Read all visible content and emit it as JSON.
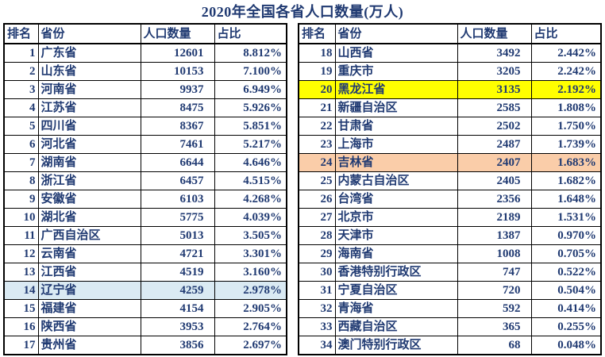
{
  "page": {
    "title": "2020年全国各省人口数量(万人)"
  },
  "colors": {
    "text": "#203a72",
    "border": "#000000",
    "background": "#ffffff",
    "highlight_light_blue": "#daeaf3",
    "highlight_yellow": "#ffff00",
    "highlight_orange": "#facda9"
  },
  "chart_data": {
    "type": "table",
    "title": "2020年全国各省人口数量(万人)",
    "unit_label": "万人",
    "columns": [
      "排名",
      "省份",
      "人口数量",
      "占比"
    ],
    "layout": {
      "panels": 2,
      "left_panel_ranks": "1-17",
      "right_panel_ranks": "18-34",
      "grid": true
    },
    "highlighted_rows": [
      {
        "rank": 14,
        "province": "辽宁省",
        "color_name": "light_blue"
      },
      {
        "rank": 20,
        "province": "黑龙江省",
        "color_name": "yellow"
      },
      {
        "rank": 24,
        "province": "吉林省",
        "color_name": "orange"
      }
    ],
    "rows": [
      {
        "rank": 1,
        "province": "广东省",
        "population": 12601,
        "percent": "8.812%",
        "highlight": ""
      },
      {
        "rank": 2,
        "province": "山东省",
        "population": 10153,
        "percent": "7.100%",
        "highlight": ""
      },
      {
        "rank": 3,
        "province": "河南省",
        "population": 9937,
        "percent": "6.949%",
        "highlight": ""
      },
      {
        "rank": 4,
        "province": "江苏省",
        "population": 8475,
        "percent": "5.926%",
        "highlight": ""
      },
      {
        "rank": 5,
        "province": "四川省",
        "population": 8367,
        "percent": "5.851%",
        "highlight": ""
      },
      {
        "rank": 6,
        "province": "河北省",
        "population": 7461,
        "percent": "5.217%",
        "highlight": ""
      },
      {
        "rank": 7,
        "province": "湖南省",
        "population": 6644,
        "percent": "4.646%",
        "highlight": ""
      },
      {
        "rank": 8,
        "province": "浙江省",
        "population": 6457,
        "percent": "4.515%",
        "highlight": ""
      },
      {
        "rank": 9,
        "province": "安徽省",
        "population": 6103,
        "percent": "4.268%",
        "highlight": ""
      },
      {
        "rank": 10,
        "province": "湖北省",
        "population": 5775,
        "percent": "4.039%",
        "highlight": ""
      },
      {
        "rank": 11,
        "province": "广西自治区",
        "population": 5013,
        "percent": "3.505%",
        "highlight": ""
      },
      {
        "rank": 12,
        "province": "云南省",
        "population": 4721,
        "percent": "3.301%",
        "highlight": ""
      },
      {
        "rank": 13,
        "province": "江西省",
        "population": 4519,
        "percent": "3.160%",
        "highlight": ""
      },
      {
        "rank": 14,
        "province": "辽宁省",
        "population": 4259,
        "percent": "2.978%",
        "highlight": "light_blue"
      },
      {
        "rank": 15,
        "province": "福建省",
        "population": 4154,
        "percent": "2.905%",
        "highlight": ""
      },
      {
        "rank": 16,
        "province": "陕西省",
        "population": 3953,
        "percent": "2.764%",
        "highlight": ""
      },
      {
        "rank": 17,
        "province": "贵州省",
        "population": 3856,
        "percent": "2.697%",
        "highlight": ""
      },
      {
        "rank": 18,
        "province": "山西省",
        "population": 3492,
        "percent": "2.442%",
        "highlight": ""
      },
      {
        "rank": 19,
        "province": "重庆市",
        "population": 3205,
        "percent": "2.242%",
        "highlight": ""
      },
      {
        "rank": 20,
        "province": "黑龙江省",
        "population": 3135,
        "percent": "2.192%",
        "highlight": "yellow"
      },
      {
        "rank": 21,
        "province": "新疆自治区",
        "population": 2585,
        "percent": "1.808%",
        "highlight": ""
      },
      {
        "rank": 22,
        "province": "甘肃省",
        "population": 2502,
        "percent": "1.750%",
        "highlight": ""
      },
      {
        "rank": 23,
        "province": "上海市",
        "population": 2487,
        "percent": "1.739%",
        "highlight": ""
      },
      {
        "rank": 24,
        "province": "吉林省",
        "population": 2407,
        "percent": "1.683%",
        "highlight": "orange"
      },
      {
        "rank": 25,
        "province": "内蒙古自治区",
        "population": 2405,
        "percent": "1.682%",
        "highlight": ""
      },
      {
        "rank": 26,
        "province": "台湾省",
        "population": 2356,
        "percent": "1.648%",
        "highlight": ""
      },
      {
        "rank": 27,
        "province": "北京市",
        "population": 2189,
        "percent": "1.531%",
        "highlight": ""
      },
      {
        "rank": 28,
        "province": "天津市",
        "population": 1387,
        "percent": "0.970%",
        "highlight": ""
      },
      {
        "rank": 29,
        "province": "海南省",
        "population": 1008,
        "percent": "0.705%",
        "highlight": ""
      },
      {
        "rank": 30,
        "province": "香港特别行政区",
        "population": 747,
        "percent": "0.522%",
        "highlight": ""
      },
      {
        "rank": 31,
        "province": "宁夏自治区",
        "population": 720,
        "percent": "0.504%",
        "highlight": ""
      },
      {
        "rank": 32,
        "province": "青海省",
        "population": 592,
        "percent": "0.414%",
        "highlight": ""
      },
      {
        "rank": 33,
        "province": "西藏自治区",
        "population": 365,
        "percent": "0.255%",
        "highlight": ""
      },
      {
        "rank": 34,
        "province": "澳门特别行政区",
        "population": 68,
        "percent": "0.048%",
        "highlight": ""
      }
    ]
  }
}
